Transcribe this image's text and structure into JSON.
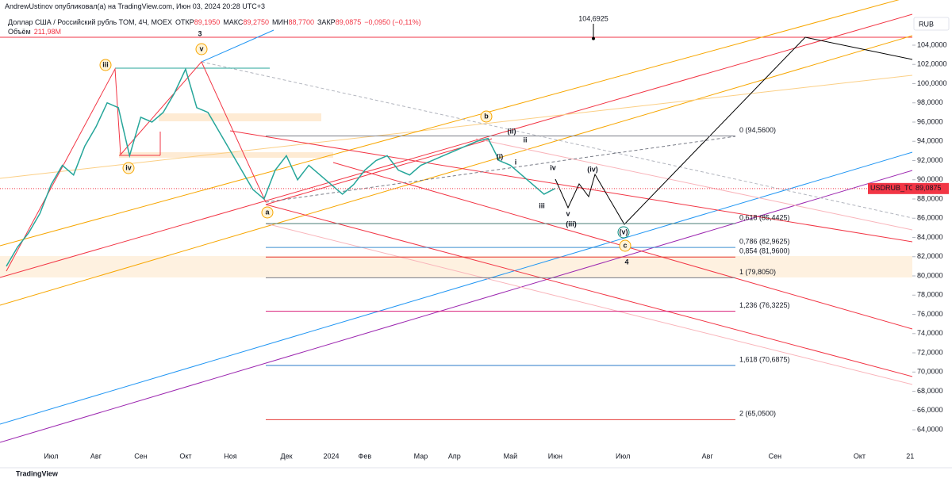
{
  "header": {
    "publisher": "AndrewUstinov опубликовал(а) на TradingView.com, Июн 03, 2024 20:28 UTC+3",
    "symbol": "Доллар США / Российский рубль TOM, 4Ч, MOEX",
    "ohlc": [
      {
        "label": "ОТКР",
        "value": "89,1950"
      },
      {
        "label": "МАКС",
        "value": "89,2750"
      },
      {
        "label": "МИН",
        "value": "88,7700"
      },
      {
        "label": "ЗАКР",
        "value": "89,0875"
      }
    ],
    "change": "−0,0950 (−0,11%)",
    "volume_label": "Объём",
    "volume_value": "211,98M",
    "currency": "RUB",
    "footer": "TradingView"
  },
  "chart_data": {
    "type": "line",
    "color": "#26a69a",
    "categories": [
      null,
      null,
      null,
      null,
      "Июл",
      null,
      null,
      null,
      "Авг",
      null,
      null,
      null,
      "Сен",
      null,
      null,
      null,
      "Окт",
      null,
      null,
      null,
      "Ноя",
      null,
      null,
      null,
      null,
      "Дек",
      null,
      null,
      null,
      "2024",
      null,
      null,
      "Фев",
      null,
      null,
      null,
      null,
      "Мар",
      null,
      null,
      "Апр",
      null,
      null,
      null,
      null,
      "Май",
      null,
      null,
      null,
      "Июн",
      null,
      null,
      null,
      "Июл",
      null,
      null,
      null,
      null,
      "Авг",
      null,
      null,
      null,
      "Сен",
      null,
      null,
      null,
      null,
      "Окт",
      null,
      null,
      "21"
    ],
    "values": [
      81.0,
      83.0,
      84.5,
      86.5,
      89.5,
      91.5,
      90.5,
      93.5,
      95.5,
      98.0,
      97.5,
      92.5,
      96.5,
      96.0,
      97.0,
      99.0,
      101.5,
      97.5,
      97.0,
      95.0,
      93.0,
      91.0,
      89.0,
      88.0,
      91.0,
      92.5,
      90.0,
      91.5,
      90.5,
      89.5,
      88.5,
      89.5,
      91.0,
      92.0,
      92.5,
      91.0,
      90.5,
      91.5,
      92.0,
      92.5,
      93.0,
      93.5,
      94.0,
      94.3,
      92.0,
      91.5,
      90.5,
      89.5,
      88.5,
      89.1,
      null,
      null,
      null,
      null,
      null,
      null,
      null,
      null,
      null,
      null,
      null,
      null,
      null,
      null,
      null,
      null,
      null,
      null,
      null,
      null,
      null
    ],
    "ylim": [
      61.86,
      107.05
    ],
    "yticks": [
      {
        "value": 64,
        "label": "64,0000"
      },
      {
        "value": 66,
        "label": "66,0000"
      },
      {
        "value": 68,
        "label": "68,0000"
      },
      {
        "value": 70,
        "label": "70,0000"
      },
      {
        "value": 72,
        "label": "72,0000"
      },
      {
        "value": 74,
        "label": "74,0000"
      },
      {
        "value": 76,
        "label": "76,0000"
      },
      {
        "value": 78,
        "label": "78,0000"
      },
      {
        "value": 80,
        "label": "80,0000"
      },
      {
        "value": 82,
        "label": "82,0000"
      },
      {
        "value": 84,
        "label": "84,0000"
      },
      {
        "value": 86,
        "label": "86,0000"
      },
      {
        "value": 88,
        "label": "88,0000"
      },
      {
        "value": 90,
        "label": "90,0000"
      },
      {
        "value": 92,
        "label": "92,0000"
      },
      {
        "value": 94,
        "label": "94,0000"
      },
      {
        "value": 96,
        "label": "96,0000"
      },
      {
        "value": 98,
        "label": "98,0000"
      },
      {
        "value": 100,
        "label": "100,0000"
      },
      {
        "value": 102,
        "label": "102,0000"
      },
      {
        "value": 104,
        "label": "104,0000"
      }
    ],
    "fib_levels": [
      {
        "label": "0 (94,5600)",
        "value": 94.56,
        "color": "#787b86"
      },
      {
        "label": "0,618 (85,4425)",
        "value": 85.4425,
        "color": "#4a7c74"
      },
      {
        "label": "0,786 (82,9625)",
        "value": 82.9625,
        "color": "#3d8fd1"
      },
      {
        "label": "0,854 (81,9600)",
        "value": 81.96,
        "color": "#e53935"
      },
      {
        "label": "1 (79,8050)",
        "value": 79.805,
        "color": "#787b86"
      },
      {
        "label": "1,236 (76,3225)",
        "value": 76.3225,
        "color": "#d81b78"
      },
      {
        "label": "1,618 (70,6875)",
        "value": 70.6875,
        "color": "#2979c9"
      },
      {
        "label": "2 (65,0500)",
        "value": 65.05,
        "color": "#e53935"
      }
    ],
    "target": {
      "value": 104.6925,
      "label": "104,6925"
    },
    "last": {
      "symbol": "USDRUB_TOM",
      "value": 89.0875,
      "label": "89,0875"
    },
    "annotations": [
      "3",
      "iii",
      "v",
      "iv",
      "a",
      "b",
      "(ii)",
      "ii",
      "(i)",
      "i",
      "iv",
      "iii",
      "v",
      "(iii)",
      "(iv)",
      "(v)",
      "c",
      "4"
    ]
  }
}
